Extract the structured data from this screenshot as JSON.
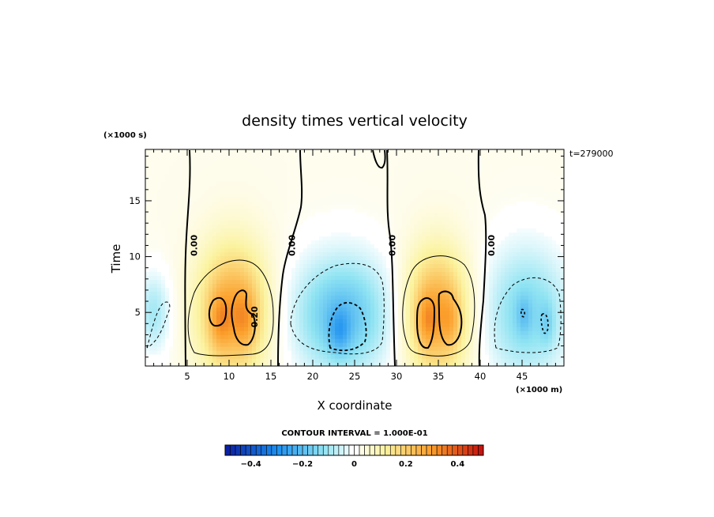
{
  "chart_data": {
    "type": "heatmap",
    "title": "density times vertical velocity",
    "xlabel": "X coordinate",
    "ylabel": "Time",
    "x_unit": "(×1000 m)",
    "y_unit": "(×1000 s)",
    "timestamp": "t=279000",
    "contour_interval_text": "CONTOUR INTERVAL = 1.000E-01",
    "xlim": [
      0,
      50
    ],
    "ylim": [
      0.2,
      19.6
    ],
    "x_ticks": [
      5,
      10,
      15,
      20,
      25,
      30,
      35,
      40,
      45
    ],
    "y_ticks": [
      5,
      10,
      15
    ],
    "colorbar": {
      "range": [
        -0.5,
        0.5
      ],
      "tick_values": [
        -0.4,
        -0.2,
        0,
        0.2,
        0.4
      ],
      "tick_labels": [
        "−0.4",
        "−0.2",
        "0",
        "0.2",
        "0.4"
      ],
      "colors": {
        "neg_max": "#0a1aa0",
        "neg_mid": "#1b8ef0",
        "neg_low": "#8fe3f2",
        "zero": "#ffffff",
        "pos_low": "#fbf3a0",
        "pos_mid": "#fb9e2a",
        "pos_max": "#c40d0d"
      }
    },
    "contour_labels": [
      {
        "text": "0.00",
        "x": 5.9,
        "y": 11.0
      },
      {
        "text": "0.00",
        "x": 17.6,
        "y": 11.0
      },
      {
        "text": "0.00",
        "x": 29.6,
        "y": 11.0
      },
      {
        "text": "0.00",
        "x": 41.4,
        "y": 11.0
      },
      {
        "text": "0.20",
        "x": 13.1,
        "y": 4.6
      }
    ],
    "features": [
      {
        "sign": "positive",
        "x_center": 10.5,
        "y_center": 5.2,
        "peak": 0.33
      },
      {
        "sign": "negative",
        "x_center": 23.5,
        "y_center": 4.8,
        "peak": -0.3
      },
      {
        "sign": "positive",
        "x_center": 34.8,
        "y_center": 5.0,
        "peak": 0.33
      },
      {
        "sign": "negative",
        "x_center": 45.5,
        "y_center": 5.0,
        "peak": -0.22
      },
      {
        "sign": "negative",
        "x_center": 1.0,
        "y_center": 5.0,
        "peak": -0.12
      }
    ]
  }
}
